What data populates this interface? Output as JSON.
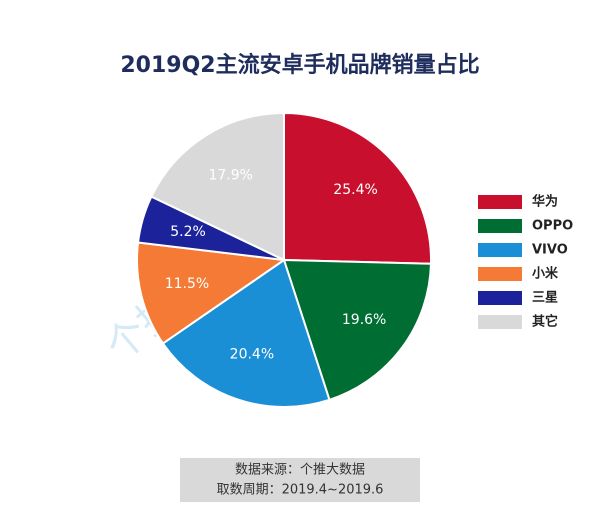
{
  "chart_data": {
    "type": "pie",
    "title": "2019Q2主流安卓手机品牌销量占比",
    "categories": [
      "华为",
      "OPPO",
      "VIVO",
      "小米",
      "三星",
      "其它"
    ],
    "values": [
      25.4,
      19.6,
      20.4,
      11.5,
      5.2,
      17.9
    ],
    "value_labels": [
      "25.4%",
      "19.6%",
      "20.4%",
      "11.5%",
      "5.2%",
      "17.9%"
    ],
    "colors": [
      "#c8102e",
      "#006e33",
      "#1a8fd6",
      "#f47a35",
      "#1c239a",
      "#d9d9d9"
    ],
    "legend": "right",
    "watermark": "个推大数据",
    "source": [
      "数据来源：个推大数据",
      "取数周期：2019.4~2019.6"
    ]
  }
}
